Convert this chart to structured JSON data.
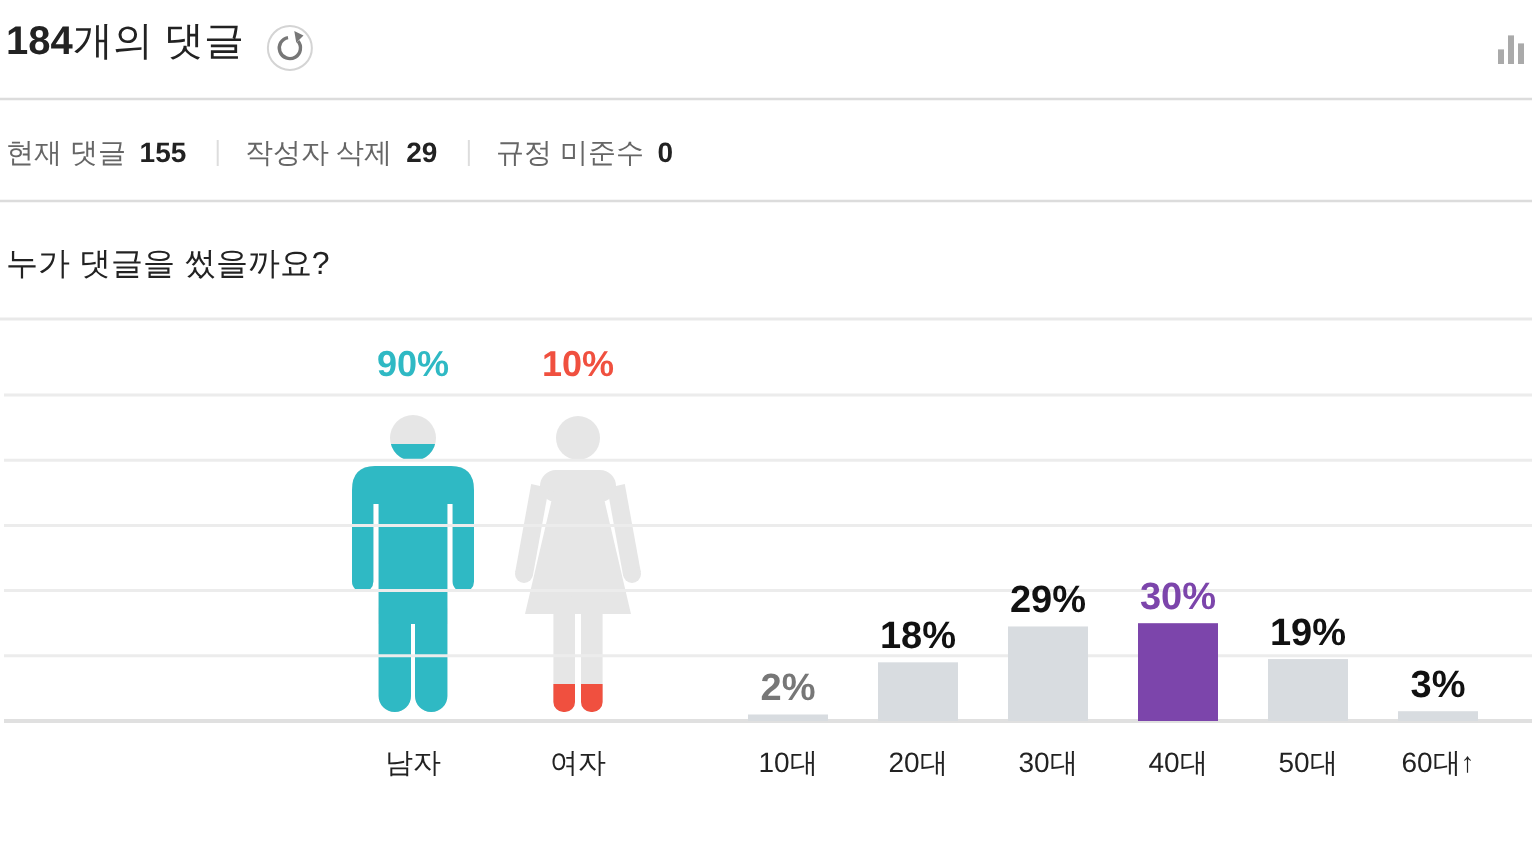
{
  "chart_data": [
    {
      "type": "other",
      "title": "184개의 댓글",
      "annotations": [
        "현재 댓글 155",
        "작성자 삭제 29",
        "규정 미준수 0"
      ]
    },
    {
      "type": "other",
      "title": "누가 댓글을 썼을까요?",
      "categories": [
        "남자",
        "여자"
      ],
      "values": [
        90,
        10
      ],
      "colors": [
        "#2fb9c4",
        "#f0503f"
      ],
      "value_labels": [
        "90%",
        "10%"
      ]
    },
    {
      "type": "bar",
      "categories": [
        "10대",
        "20대",
        "30대",
        "40대",
        "50대",
        "60대↑"
      ],
      "values": [
        2,
        18,
        29,
        30,
        19,
        3
      ],
      "colors": [
        "#d8dce0",
        "#d8dce0",
        "#d8dce0",
        "#7c45ab",
        "#d8dce0",
        "#d8dce0"
      ],
      "value_labels": [
        "2%",
        "18%",
        "29%",
        "30%",
        "19%",
        "3%"
      ],
      "ylim": [
        0,
        100
      ],
      "yticks": [
        {
          "value": 0,
          "label": null
        },
        {
          "value": 20,
          "label": null
        },
        {
          "value": 40,
          "label": null
        },
        {
          "value": 60,
          "label": null
        },
        {
          "value": 80,
          "label": null
        },
        {
          "value": 100,
          "label": null
        }
      ],
      "grid": "y",
      "tick_labels": "x"
    }
  ]
}
